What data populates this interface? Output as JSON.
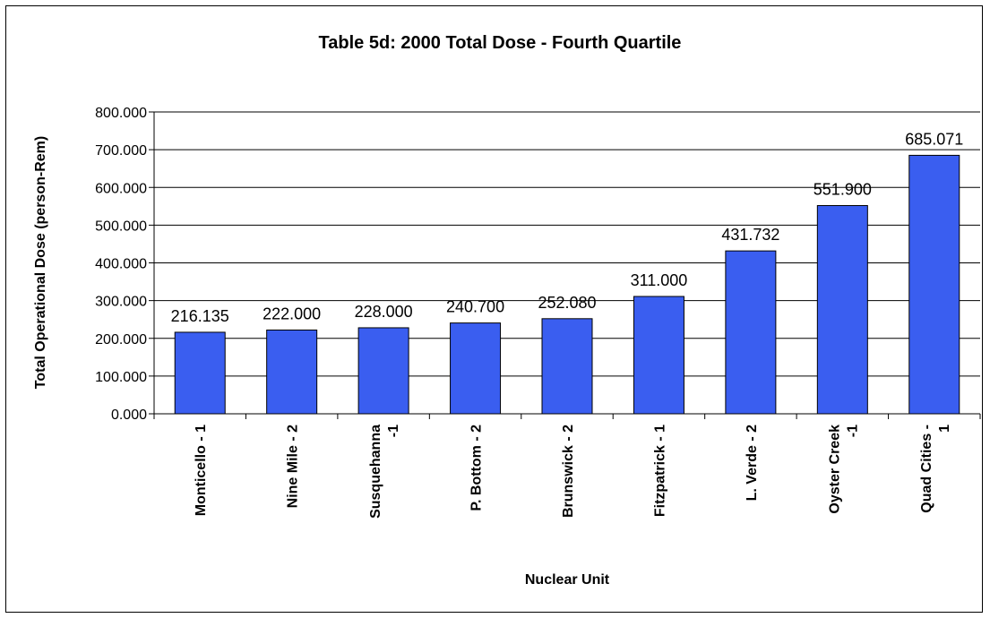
{
  "chart_data": {
    "type": "bar",
    "title": "Table 5d: 2000 Total Dose - Fourth Quartile",
    "xlabel": "Nuclear Unit",
    "ylabel": "Total Operational Dose (person-Rem)",
    "ylim": [
      0,
      800
    ],
    "yticks": [
      "0.000",
      "100.000",
      "200.000",
      "300.000",
      "400.000",
      "500.000",
      "600.000",
      "700.000",
      "800.000"
    ],
    "grid": true,
    "bar_color": "#3a5ef0",
    "categories": [
      [
        "Monticello - 1"
      ],
      [
        "Nine Mile - 2"
      ],
      [
        "Susquehanna",
        "-1"
      ],
      [
        "P. Bottom - 2"
      ],
      [
        "Brunswick - 2"
      ],
      [
        "Fitzpatrick - 1"
      ],
      [
        "L. Verde - 2"
      ],
      [
        "Oyster Creek",
        "-1"
      ],
      [
        "Quad Cities -",
        "1"
      ]
    ],
    "values": [
      216.135,
      222.0,
      228.0,
      240.7,
      252.08,
      311.0,
      431.732,
      551.9,
      685.071
    ],
    "value_labels": [
      "216.135",
      "222.000",
      "228.000",
      "240.700",
      "252.080",
      "311.000",
      "431.732",
      "551.900",
      "685.071"
    ]
  }
}
